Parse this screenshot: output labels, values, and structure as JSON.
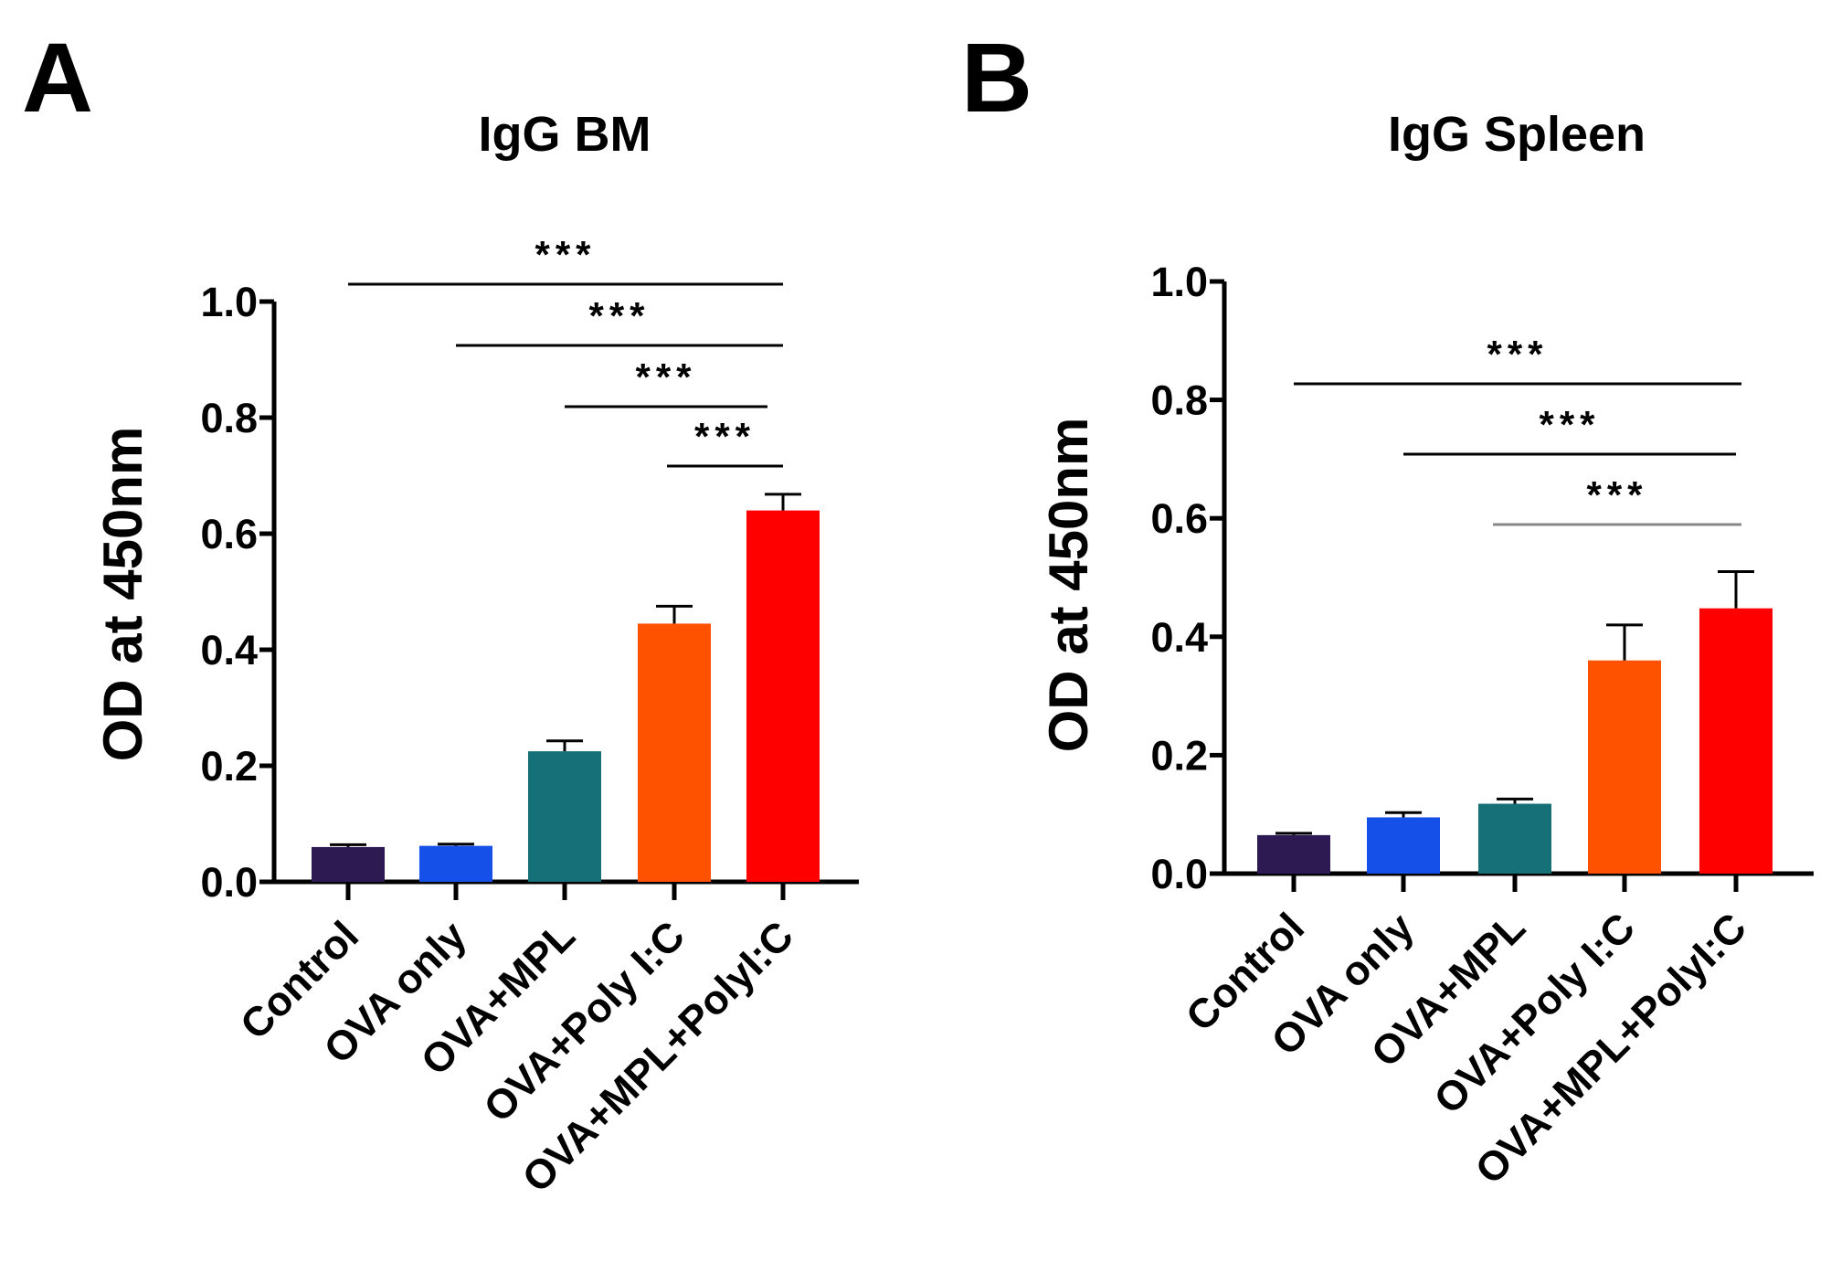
{
  "chart_data": [
    {
      "type": "bar",
      "panel": "A",
      "title": "IgG BM",
      "xlabel": "",
      "ylabel": "OD at 450nm",
      "ylim": [
        0,
        1.0
      ],
      "yticks": [
        "0.0",
        "0.2",
        "0.4",
        "0.6",
        "0.8",
        "1.0"
      ],
      "categories": [
        "Control",
        "OVA only",
        "OVA+MPL",
        "OVA+Poly I:C",
        "OVA+MPL+PolyI:C"
      ],
      "values": [
        0.06,
        0.062,
        0.225,
        0.445,
        0.64
      ],
      "errors": [
        0.004,
        0.003,
        0.018,
        0.03,
        0.028
      ],
      "colors": [
        "#2e1a52",
        "#1550e8",
        "#157078",
        "#ff5200",
        "#ff0000"
      ],
      "significance": [
        {
          "from": 0,
          "to": 4,
          "label": "***"
        },
        {
          "from": 1,
          "to": 4,
          "label": "***"
        },
        {
          "from": 2,
          "to": 3.85,
          "label": "***"
        },
        {
          "from": 2.9,
          "to": 4,
          "label": "***"
        }
      ],
      "grid": false
    },
    {
      "type": "bar",
      "panel": "B",
      "title": "IgG Spleen",
      "xlabel": "",
      "ylabel": "OD at 450nm",
      "ylim": [
        0,
        1.0
      ],
      "yticks": [
        "0.0",
        "0.2",
        "0.4",
        "0.6",
        "0.8",
        "1.0"
      ],
      "categories": [
        "Control",
        "OVA only",
        "OVA+MPL",
        "OVA+Poly I:C",
        "OVA+MPL+PolyI:C"
      ],
      "values": [
        0.065,
        0.095,
        0.118,
        0.36,
        0.448
      ],
      "errors": [
        0.003,
        0.008,
        0.008,
        0.06,
        0.062
      ],
      "colors": [
        "#2e1a52",
        "#1550e8",
        "#157078",
        "#ff5200",
        "#ff0000"
      ],
      "significance": [
        {
          "from": 0,
          "to": 4,
          "label": "***"
        },
        {
          "from": 1,
          "to": 4,
          "label": "***"
        },
        {
          "from": 2,
          "to": 4,
          "label": "***"
        }
      ],
      "grid": false
    }
  ]
}
